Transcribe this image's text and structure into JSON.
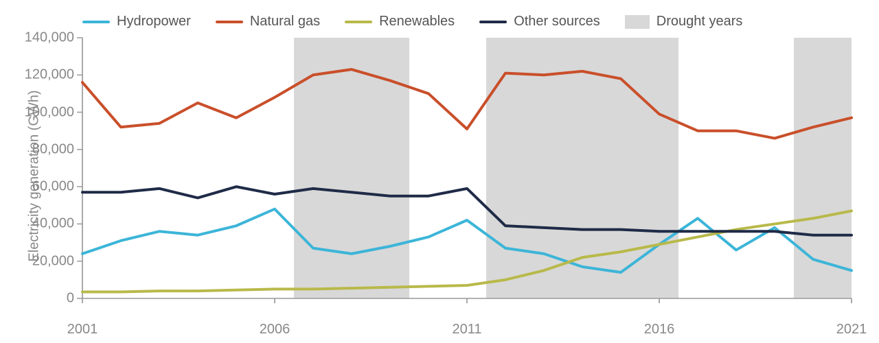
{
  "chart": {
    "type": "line",
    "background_color": "#ffffff",
    "y_axis": {
      "label": "Electricity generation (GWh)",
      "min": 0,
      "max": 140000,
      "tick_step": 20000,
      "tick_labels": [
        "0",
        "20,000",
        "40,000",
        "60,000",
        "80,000",
        "100,000",
        "120,000",
        "140,000"
      ],
      "label_fontsize": 20,
      "tick_fontsize": 20,
      "color": "#888888"
    },
    "x_axis": {
      "min": 2001,
      "max": 2021,
      "tick_step": 5,
      "tick_labels": [
        "2001",
        "2006",
        "2011",
        "2016",
        "2021"
      ],
      "tick_fontsize": 20,
      "color": "#888888"
    },
    "axis_line_color": "#999999",
    "line_width": 4,
    "legend": {
      "position": "top",
      "fontsize": 20,
      "text_color": "#555555",
      "items": [
        {
          "label": "Hydropower",
          "type": "line",
          "color": "#3cb5d8"
        },
        {
          "label": "Natural gas",
          "type": "line",
          "color": "#c94f2a"
        },
        {
          "label": "Renewables",
          "type": "line",
          "color": "#b8b94a"
        },
        {
          "label": "Other sources",
          "type": "line",
          "color": "#1f2b47"
        },
        {
          "label": "Drought years",
          "type": "box",
          "color": "#d8d8d8"
        }
      ]
    },
    "drought_bands": [
      {
        "start": 2006.5,
        "end": 2009.5
      },
      {
        "start": 2011.5,
        "end": 2016.5
      },
      {
        "start": 2019.5,
        "end": 2021
      }
    ],
    "drought_color": "#d8d8d8",
    "series": [
      {
        "name": "Hydropower",
        "color": "#3cb5d8",
        "x": [
          2001,
          2002,
          2003,
          2004,
          2005,
          2006,
          2007,
          2008,
          2009,
          2010,
          2011,
          2012,
          2013,
          2014,
          2015,
          2016,
          2017,
          2018,
          2019,
          2020,
          2021
        ],
        "y": [
          24000,
          31000,
          36000,
          34000,
          39000,
          48000,
          27000,
          24000,
          28000,
          33000,
          42000,
          27000,
          24000,
          17000,
          14000,
          29000,
          43000,
          26000,
          38000,
          21000,
          15000
        ]
      },
      {
        "name": "Natural gas",
        "color": "#c94f2a",
        "x": [
          2001,
          2002,
          2003,
          2004,
          2005,
          2006,
          2007,
          2008,
          2009,
          2010,
          2011,
          2012,
          2013,
          2014,
          2015,
          2016,
          2017,
          2018,
          2019,
          2020,
          2021
        ],
        "y": [
          116000,
          92000,
          94000,
          105000,
          97000,
          108000,
          120000,
          123000,
          117000,
          110000,
          91000,
          121000,
          120000,
          122000,
          118000,
          99000,
          90000,
          90000,
          86000,
          92000,
          97000
        ]
      },
      {
        "name": "Renewables",
        "color": "#b8b94a",
        "x": [
          2001,
          2002,
          2003,
          2004,
          2005,
          2006,
          2007,
          2008,
          2009,
          2010,
          2011,
          2012,
          2013,
          2014,
          2015,
          2016,
          2017,
          2018,
          2019,
          2020,
          2021
        ],
        "y": [
          3500,
          3500,
          4000,
          4000,
          4500,
          5000,
          5000,
          5500,
          6000,
          6500,
          7000,
          10000,
          15000,
          22000,
          25000,
          29000,
          33000,
          37000,
          40000,
          43000,
          47000
        ]
      },
      {
        "name": "Other sources",
        "color": "#1f2b47",
        "x": [
          2001,
          2002,
          2003,
          2004,
          2005,
          2006,
          2007,
          2008,
          2009,
          2010,
          2011,
          2012,
          2013,
          2014,
          2015,
          2016,
          2017,
          2018,
          2019,
          2020,
          2021
        ],
        "y": [
          57000,
          57000,
          59000,
          54000,
          60000,
          56000,
          59000,
          57000,
          55000,
          55000,
          59000,
          39000,
          38000,
          37000,
          37000,
          36000,
          36000,
          36000,
          36000,
          34000,
          34000
        ]
      }
    ]
  }
}
